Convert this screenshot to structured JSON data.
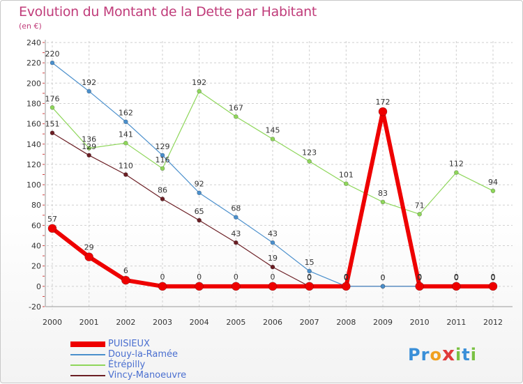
{
  "chart_data": {
    "type": "line",
    "title": "Evolution du Montant de la Dette par Habitant",
    "subtitle": "(en €)",
    "xlabel": "",
    "ylabel": "",
    "ylim": [
      -20,
      240
    ],
    "yticks": [
      -20,
      0,
      20,
      40,
      60,
      80,
      100,
      120,
      140,
      160,
      180,
      200,
      220,
      240
    ],
    "x": [
      "2000",
      "2001",
      "2002",
      "2003",
      "2004",
      "2005",
      "2006",
      "2007",
      "2008",
      "2009",
      "2010",
      "2011",
      "2012"
    ],
    "grid": true,
    "legend_position": "bottom-left",
    "series": [
      {
        "name": "Vincy-Manoeuvre",
        "color": "#6b1e24",
        "values": [
          151,
          129,
          110,
          86,
          65,
          43,
          19,
          0,
          0,
          0,
          0,
          0,
          0
        ],
        "labels": [
          "151",
          "129",
          "110",
          "86",
          "65",
          "43",
          "19",
          "0",
          "0",
          "0",
          "0",
          "0",
          "0"
        ]
      },
      {
        "name": "Étrépilly",
        "color": "#8ed65a",
        "values": [
          176,
          136,
          141,
          116,
          192,
          167,
          145,
          123,
          101,
          83,
          71,
          112,
          94
        ],
        "labels": [
          "176",
          "136",
          "141",
          "116",
          "192",
          "167",
          "145",
          "123",
          "101",
          "83",
          "71",
          "112",
          "94"
        ]
      },
      {
        "name": "Douy-la-Ramée",
        "color": "#4a8fcc",
        "values": [
          220,
          192,
          162,
          129,
          92,
          68,
          43,
          15,
          0,
          0,
          0,
          0,
          0
        ],
        "labels": [
          "220",
          "192",
          "162",
          "129",
          "92",
          "68",
          "43",
          "15",
          "0",
          "0",
          "0",
          "0",
          "0"
        ]
      },
      {
        "name": "PUISIEUX",
        "color": "#ee0000",
        "values": [
          57,
          29,
          6,
          0,
          0,
          0,
          0,
          0,
          0,
          172,
          0,
          0,
          0
        ],
        "labels": [
          "57",
          "29",
          "6",
          "0",
          "0",
          "0",
          "0",
          "0",
          "0",
          "172",
          "0",
          "0",
          "0"
        ]
      }
    ],
    "legend": [
      "PUISIEUX",
      "Douy-la-Ramée",
      "Étrépilly",
      "Vincy-Manoeuvre"
    ]
  },
  "logo": {
    "letters": [
      "P",
      "r",
      "o",
      "x",
      "i",
      "t",
      "i"
    ],
    "colors": [
      "#3a8fd8",
      "#3a8fd8",
      "#f0a020",
      "#e03a3a",
      "#7ac143",
      "#3a8fd8",
      "#7ac143"
    ]
  }
}
